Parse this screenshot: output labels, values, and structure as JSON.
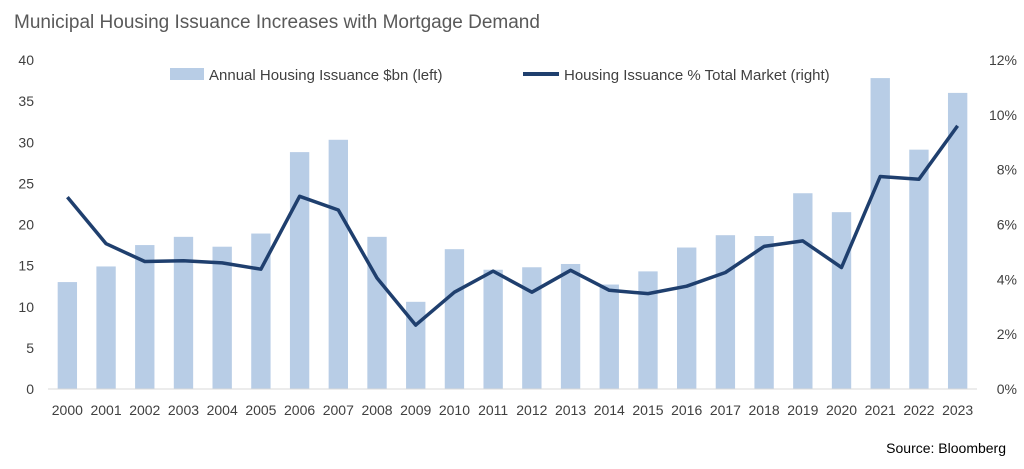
{
  "title": "Municipal Housing Issuance Increases with Mortgage Demand",
  "source": "Source: Bloomberg",
  "colors": {
    "bar": "#b8cde6",
    "line": "#1f3f6e",
    "axis": "#d9d9d9",
    "text": "#404040"
  },
  "chart_data": {
    "type": "bar",
    "categories": [
      "2000",
      "2001",
      "2002",
      "2003",
      "2004",
      "2005",
      "2006",
      "2007",
      "2008",
      "2009",
      "2010",
      "2011",
      "2012",
      "2013",
      "2014",
      "2015",
      "2016",
      "2017",
      "2018",
      "2019",
      "2020",
      "2021",
      "2022",
      "2023"
    ],
    "series": [
      {
        "name": "Annual Housing Issuance $bn (left)",
        "type": "bar",
        "axis": "left",
        "values": [
          13.0,
          14.9,
          17.5,
          18.5,
          17.3,
          18.9,
          28.8,
          30.3,
          18.5,
          10.6,
          17.0,
          14.5,
          14.8,
          15.2,
          12.7,
          14.3,
          17.2,
          18.7,
          18.6,
          23.8,
          21.5,
          37.8,
          29.1,
          36.0
        ]
      },
      {
        "name": "Housing Issuance % Total Market (right)",
        "type": "line",
        "axis": "right",
        "values": [
          0.07,
          0.053,
          0.0465,
          0.0468,
          0.046,
          0.0437,
          0.0703,
          0.0653,
          0.0405,
          0.0233,
          0.0353,
          0.043,
          0.0353,
          0.0433,
          0.036,
          0.0348,
          0.0375,
          0.0425,
          0.052,
          0.054,
          0.0443,
          0.0775,
          0.0765,
          0.096
        ]
      }
    ],
    "y_left": {
      "min": 0,
      "max": 40,
      "step": 5,
      "ticks": [
        "0",
        "5",
        "10",
        "15",
        "20",
        "25",
        "30",
        "35",
        "40"
      ]
    },
    "y_right": {
      "min": 0,
      "max": 0.12,
      "step": 0.02,
      "ticks": [
        "0%",
        "2%",
        "4%",
        "6%",
        "8%",
        "10%",
        "12%"
      ]
    },
    "legend": {
      "position": "top-center",
      "bar_label": "Annual Housing Issuance $bn (left)",
      "line_label": "Housing Issuance % Total Market (right)"
    },
    "grid": false
  }
}
